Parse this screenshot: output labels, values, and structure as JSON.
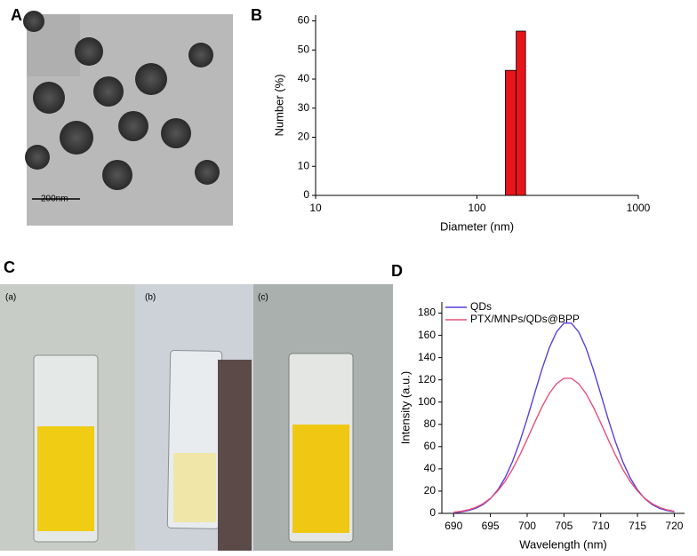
{
  "panels": [
    "A",
    "B",
    "C",
    "D"
  ],
  "images": {
    "scale_bar": "200nm",
    "cuvettes": [
      "(a)",
      "(b)",
      "(c)"
    ]
  },
  "chart_data": [
    {
      "type": "histogram",
      "xlabel": "Diameter (nm)",
      "ylabel": "Number (%)",
      "log_x": true,
      "bins": [
        150,
        175,
        200
      ],
      "values": [
        43,
        56.5
      ],
      "color": "#e8141c",
      "xlim": [
        10,
        1000
      ],
      "xticks": [
        10,
        100,
        1000
      ],
      "ylim": [
        0,
        62
      ],
      "yticks": [
        0,
        10,
        20,
        30,
        40,
        50,
        60
      ]
    },
    {
      "type": "line",
      "xlabel": "Wavelength (nm)",
      "ylabel": "Intensity (a.u.)",
      "legend": "upper left",
      "x": [
        690,
        691,
        692,
        693,
        694,
        695,
        696,
        697,
        698,
        699,
        700,
        701,
        702,
        703,
        704,
        705,
        706,
        707,
        708,
        709,
        710,
        711,
        712,
        713,
        714,
        715,
        716,
        717,
        718,
        719,
        720
      ],
      "series": [
        {
          "name": "QDs",
          "color": "#5a3fd8",
          "values": [
            0.6,
            1.3,
            2.5,
            4.5,
            7.9,
            13.2,
            21.1,
            32.0,
            46.5,
            64.4,
            85.1,
            107.4,
            129.3,
            148.7,
            163.2,
            171.0,
            171.0,
            163.2,
            148.7,
            129.3,
            107.4,
            85.1,
            64.4,
            46.5,
            32.0,
            21.1,
            13.2,
            7.9,
            4.5,
            2.5,
            1.3
          ]
        },
        {
          "name": "PTX/MNPs/QDs@BPP",
          "color": "#e8507a",
          "values": [
            1.0,
            1.8,
            3.2,
            5.4,
            8.7,
            13.5,
            20.1,
            28.8,
            39.6,
            52.4,
            66.6,
            81.4,
            95.5,
            107.7,
            116.6,
            121.4,
            121.4,
            116.6,
            107.7,
            95.5,
            81.4,
            66.6,
            52.4,
            39.6,
            28.8,
            20.1,
            13.5,
            8.7,
            5.4,
            3.2,
            1.8
          ]
        }
      ],
      "xlim": [
        688.4,
        721.4
      ],
      "xticks": [
        690,
        695,
        700,
        705,
        710,
        715,
        720
      ],
      "ylim": [
        0,
        190
      ],
      "yticks": [
        0,
        20,
        40,
        60,
        80,
        100,
        120,
        140,
        160,
        180
      ]
    }
  ]
}
